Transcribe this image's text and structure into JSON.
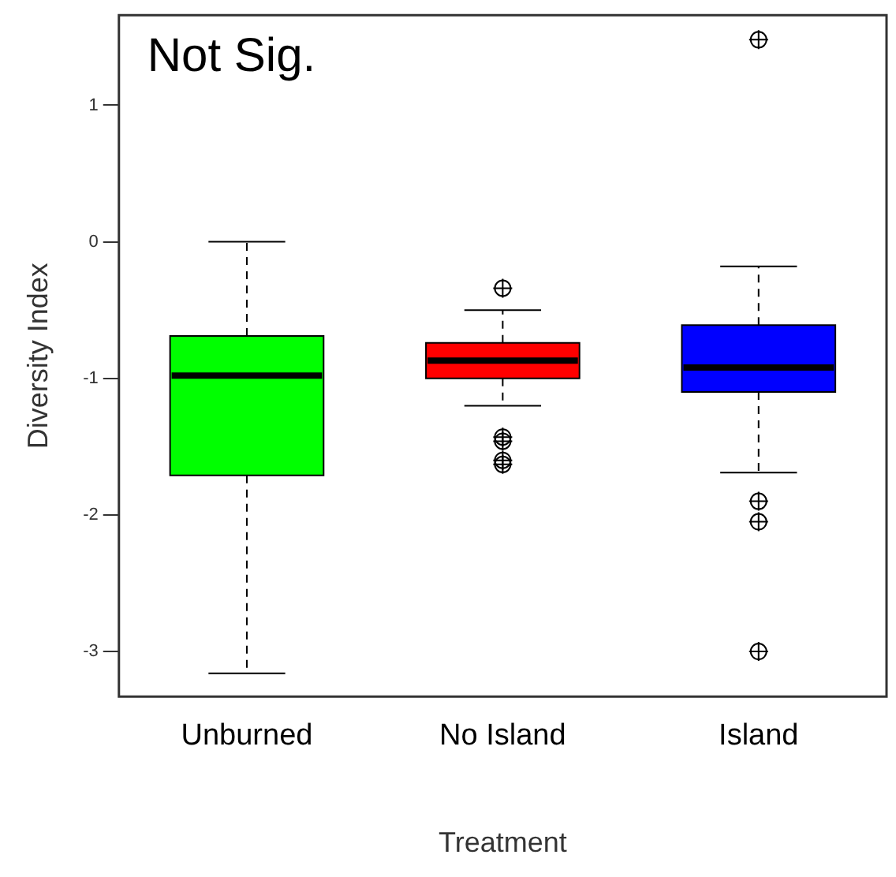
{
  "chart_data": {
    "type": "box",
    "xlabel": "Treatment",
    "ylabel": "Diversity Index",
    "annotations": [
      "Not Sig."
    ],
    "categories": [
      "Unburned",
      "No Island",
      "Island"
    ],
    "colors": [
      "#00ff00",
      "#ff0000",
      "#0000ff"
    ],
    "boxes": [
      {
        "low": -3.16,
        "q1": -1.71,
        "median": -0.98,
        "q3": -0.69,
        "high": 0
      },
      {
        "low": -1.2,
        "q1": -1.0,
        "median": -0.87,
        "q3": -0.74,
        "high": -0.5,
        "outliers": [
          -0.34,
          -1.43,
          -1.46,
          -1.6,
          -1.63
        ]
      },
      {
        "low": -1.69,
        "q1": -1.1,
        "median": -0.92,
        "q3": -0.61,
        "high": -0.18,
        "outliers": [
          1.48,
          -1.9,
          -2.05,
          -3.0
        ]
      }
    ],
    "ylim": [
      -3.33,
      1.66
    ],
    "yticks": [
      -3,
      -2,
      -1,
      0,
      1
    ],
    "grid": false,
    "legend": false
  }
}
